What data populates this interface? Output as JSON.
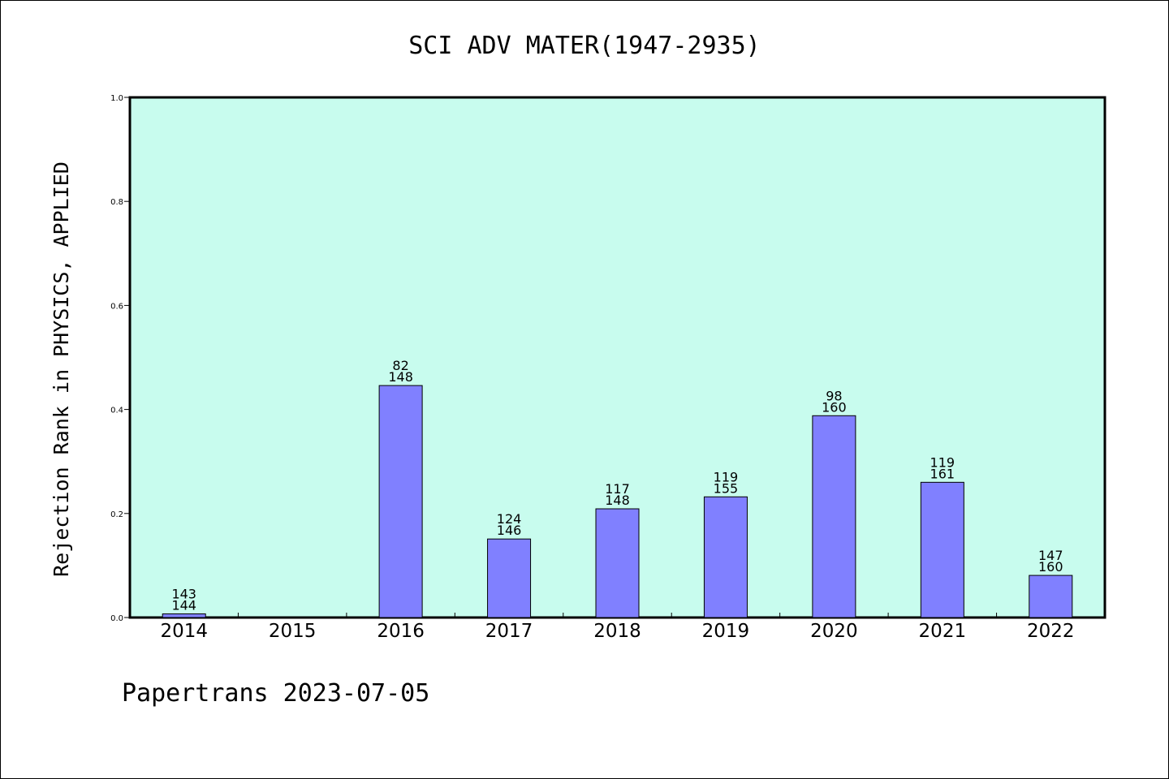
{
  "chart_data": {
    "type": "bar",
    "title": "SCI ADV MATER(1947-2935)",
    "ylabel": "Rejection Rank in PHYSICS, APPLIED",
    "xlabel": "",
    "ylim": [
      0,
      1.0
    ],
    "yticks": [
      "0.0",
      "0.2",
      "0.4",
      "0.6",
      "0.8",
      "1.0"
    ],
    "categories": [
      "2014",
      "2015",
      "2016",
      "2017",
      "2018",
      "2019",
      "2020",
      "2021",
      "2022"
    ],
    "values": [
      0.007,
      null,
      0.446,
      0.151,
      0.209,
      0.232,
      0.388,
      0.26,
      0.081
    ],
    "bar_labels": [
      [
        "143",
        "144"
      ],
      null,
      [
        "82",
        "148"
      ],
      [
        "124",
        "146"
      ],
      [
        "117",
        "148"
      ],
      [
        "119",
        "155"
      ],
      [
        "98",
        "160"
      ],
      [
        "119",
        "161"
      ],
      [
        "147",
        "160"
      ]
    ],
    "grid": false,
    "colors": {
      "plot_background": "#c8fcee",
      "bar_fill": "#8080ff",
      "bar_stroke": "#000000"
    }
  },
  "footer": {
    "text": "Papertrans 2023-07-05"
  }
}
